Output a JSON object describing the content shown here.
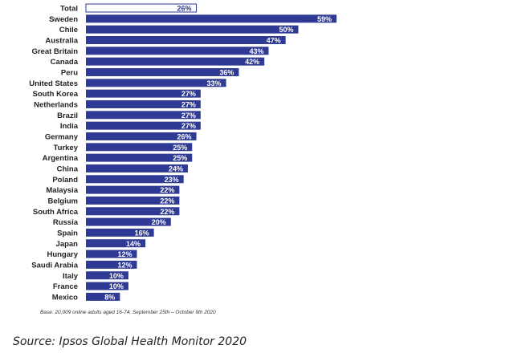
{
  "chart_data": {
    "type": "bar",
    "orientation": "horizontal",
    "categories": [
      "Total",
      "Sweden",
      "Chile",
      "Australia",
      "Great Britain",
      "Canada",
      "Peru",
      "United States",
      "South Korea",
      "Netherlands",
      "Brazil",
      "India",
      "Germany",
      "Turkey",
      "Argentina",
      "China",
      "Poland",
      "Malaysia",
      "Belgium",
      "South Africa",
      "Russia",
      "Spain",
      "Japan",
      "Hungary",
      "Saudi Arabia",
      "Italy",
      "France",
      "Mexico"
    ],
    "values": [
      26,
      59,
      50,
      47,
      43,
      42,
      36,
      33,
      27,
      27,
      27,
      27,
      26,
      25,
      25,
      24,
      23,
      22,
      22,
      22,
      20,
      16,
      14,
      12,
      12,
      10,
      10,
      8
    ],
    "value_labels": [
      "26%",
      "59%",
      "50%",
      "47%",
      "43%",
      "42%",
      "36%",
      "33%",
      "27%",
      "27%",
      "27%",
      "27%",
      "26%",
      "25%",
      "25%",
      "24%",
      "23%",
      "22%",
      "22%",
      "22%",
      "20%",
      "16%",
      "14%",
      "12%",
      "12%",
      "10%",
      "10%",
      "8%"
    ],
    "xlim": [
      0,
      100
    ],
    "grid": false,
    "colors": {
      "bar": "#2e3a93",
      "total_fill": "#ffffff",
      "total_border": "#2e3a93",
      "label": "#222222"
    }
  },
  "footnote": "Base: 20,009 online adults aged 16-74, September 25th – October 9th 2020",
  "source": "Source: Ipsos Global Health Monitor 2020"
}
